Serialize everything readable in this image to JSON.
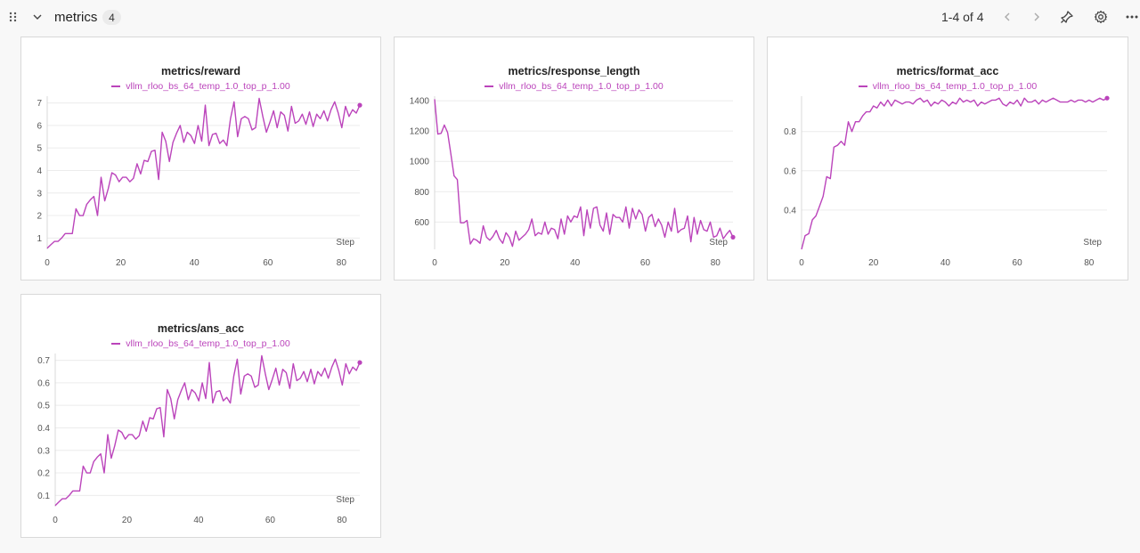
{
  "section": {
    "title": "metrics",
    "count": "4"
  },
  "pager": {
    "text": "1-4 of 4"
  },
  "icons": {
    "drag": "drag-handle-icon",
    "collapse": "chevron-down-icon",
    "prev": "chevron-left-icon",
    "next": "chevron-right-icon",
    "pin": "pin-icon",
    "settings": "gear-icon",
    "more": "more-icon"
  },
  "accent": "#bb44bb",
  "charts": [
    {
      "title": "metrics/reward",
      "legend": "vllm_rloo_bs_64_temp_1.0_top_p_1.00",
      "xlabel": "Step"
    },
    {
      "title": "metrics/response_length",
      "legend": "vllm_rloo_bs_64_temp_1.0_top_p_1.00",
      "xlabel": "Step"
    },
    {
      "title": "metrics/format_acc",
      "legend": "vllm_rloo_bs_64_temp_1.0_top_p_1.00",
      "xlabel": "Step"
    },
    {
      "title": "metrics/ans_acc",
      "legend": "vllm_rloo_bs_64_temp_1.0_top_p_1.00",
      "xlabel": "Step"
    }
  ],
  "chart_data": [
    {
      "type": "line",
      "title": "metrics/reward",
      "xlabel": "Step",
      "xlim": [
        0,
        85
      ],
      "ylim": [
        0.5,
        7.3
      ],
      "xticks": [
        0,
        20,
        40,
        60,
        80
      ],
      "yticks": [
        1,
        2,
        3,
        4,
        5,
        6,
        7
      ],
      "grid": true,
      "legend_position": "top",
      "series": [
        {
          "name": "vllm_rloo_bs_64_temp_1.0_top_p_1.00",
          "color": "#bb44bb",
          "x_start": 0,
          "values": [
            0.55,
            0.7,
            0.85,
            0.85,
            1.0,
            1.2,
            1.2,
            1.2,
            2.3,
            2.0,
            2.0,
            2.5,
            2.7,
            2.85,
            2.0,
            3.7,
            2.65,
            3.2,
            3.9,
            3.8,
            3.5,
            3.7,
            3.7,
            3.5,
            3.65,
            4.3,
            3.85,
            4.45,
            4.4,
            4.85,
            4.9,
            3.6,
            5.7,
            5.3,
            4.4,
            5.25,
            5.65,
            6.0,
            5.25,
            5.7,
            5.55,
            5.2,
            6.0,
            5.3,
            6.9,
            5.1,
            5.6,
            5.65,
            5.2,
            5.35,
            5.1,
            6.3,
            7.05,
            5.5,
            6.3,
            6.4,
            6.3,
            5.8,
            5.9,
            7.2,
            6.4,
            5.7,
            6.15,
            6.65,
            5.9,
            6.6,
            6.45,
            5.75,
            6.85,
            6.1,
            6.2,
            6.5,
            6.05,
            6.6,
            5.95,
            6.5,
            6.3,
            6.65,
            6.2,
            6.7,
            7.05,
            6.55,
            5.9,
            6.85,
            6.4,
            6.7,
            6.55,
            6.9
          ]
        }
      ]
    },
    {
      "type": "line",
      "title": "metrics/response_length",
      "xlabel": "Step",
      "xlim": [
        0,
        85
      ],
      "ylim": [
        420,
        1430
      ],
      "xticks": [
        0,
        20,
        40,
        60,
        80
      ],
      "yticks": [
        600,
        800,
        1000,
        1200,
        1400
      ],
      "grid": true,
      "legend_position": "top",
      "series": [
        {
          "name": "vllm_rloo_bs_64_temp_1.0_top_p_1.00",
          "color": "#bb44bb",
          "x_start": 0,
          "values": [
            1410,
            1180,
            1185,
            1240,
            1190,
            1050,
            905,
            880,
            595,
            595,
            610,
            455,
            490,
            480,
            460,
            575,
            500,
            480,
            505,
            545,
            490,
            460,
            530,
            500,
            440,
            540,
            480,
            500,
            520,
            550,
            620,
            510,
            530,
            520,
            600,
            520,
            560,
            550,
            490,
            620,
            520,
            640,
            600,
            640,
            630,
            700,
            510,
            680,
            560,
            690,
            700,
            580,
            540,
            660,
            520,
            650,
            630,
            630,
            600,
            700,
            560,
            690,
            620,
            680,
            650,
            540,
            630,
            650,
            570,
            620,
            580,
            500,
            600,
            540,
            690,
            530,
            550,
            560,
            640,
            470,
            630,
            520,
            610,
            550,
            540,
            600,
            500,
            510,
            560,
            490,
            520,
            545,
            500
          ]
        }
      ]
    },
    {
      "type": "line",
      "title": "metrics/format_acc",
      "xlabel": "Step",
      "xlim": [
        0,
        85
      ],
      "ylim": [
        0.2,
        0.98
      ],
      "xticks": [
        0,
        20,
        40,
        60,
        80
      ],
      "yticks": [
        0.4,
        0.6,
        0.8
      ],
      "grid": true,
      "legend_position": "top",
      "series": [
        {
          "name": "vllm_rloo_bs_64_temp_1.0_top_p_1.00",
          "color": "#bb44bb",
          "x_start": 0,
          "values": [
            0.2,
            0.27,
            0.28,
            0.35,
            0.37,
            0.42,
            0.47,
            0.57,
            0.56,
            0.72,
            0.73,
            0.75,
            0.73,
            0.85,
            0.8,
            0.85,
            0.85,
            0.88,
            0.9,
            0.9,
            0.93,
            0.92,
            0.95,
            0.93,
            0.96,
            0.93,
            0.96,
            0.95,
            0.94,
            0.95,
            0.95,
            0.94,
            0.96,
            0.97,
            0.95,
            0.96,
            0.93,
            0.95,
            0.94,
            0.96,
            0.95,
            0.93,
            0.95,
            0.94,
            0.97,
            0.95,
            0.96,
            0.95,
            0.96,
            0.93,
            0.95,
            0.94,
            0.95,
            0.96,
            0.96,
            0.97,
            0.94,
            0.93,
            0.95,
            0.94,
            0.96,
            0.93,
            0.97,
            0.95,
            0.95,
            0.96,
            0.94,
            0.96,
            0.95,
            0.96,
            0.97,
            0.96,
            0.95,
            0.95,
            0.95,
            0.96,
            0.95,
            0.96,
            0.96,
            0.95,
            0.96,
            0.95,
            0.96,
            0.97,
            0.96,
            0.97
          ]
        }
      ]
    },
    {
      "type": "line",
      "title": "metrics/ans_acc",
      "xlabel": "Step",
      "xlim": [
        0,
        85
      ],
      "ylim": [
        0.05,
        0.73
      ],
      "xticks": [
        0,
        20,
        40,
        60,
        80
      ],
      "yticks": [
        0.1,
        0.2,
        0.3,
        0.4,
        0.5,
        0.6,
        0.7
      ],
      "grid": true,
      "legend_position": "top",
      "series": [
        {
          "name": "vllm_rloo_bs_64_temp_1.0_top_p_1.00",
          "color": "#bb44bb",
          "x_start": 0,
          "values": [
            0.055,
            0.07,
            0.085,
            0.085,
            0.1,
            0.12,
            0.12,
            0.12,
            0.23,
            0.2,
            0.2,
            0.25,
            0.27,
            0.285,
            0.2,
            0.37,
            0.265,
            0.32,
            0.39,
            0.38,
            0.35,
            0.37,
            0.37,
            0.35,
            0.365,
            0.43,
            0.385,
            0.445,
            0.44,
            0.485,
            0.49,
            0.36,
            0.57,
            0.53,
            0.44,
            0.525,
            0.565,
            0.6,
            0.525,
            0.57,
            0.555,
            0.52,
            0.6,
            0.53,
            0.69,
            0.51,
            0.56,
            0.565,
            0.52,
            0.535,
            0.51,
            0.63,
            0.705,
            0.55,
            0.63,
            0.64,
            0.63,
            0.58,
            0.59,
            0.72,
            0.64,
            0.57,
            0.615,
            0.665,
            0.59,
            0.66,
            0.645,
            0.575,
            0.685,
            0.61,
            0.62,
            0.65,
            0.605,
            0.66,
            0.595,
            0.65,
            0.63,
            0.665,
            0.62,
            0.67,
            0.705,
            0.655,
            0.59,
            0.685,
            0.64,
            0.67,
            0.655,
            0.69
          ]
        }
      ]
    }
  ]
}
